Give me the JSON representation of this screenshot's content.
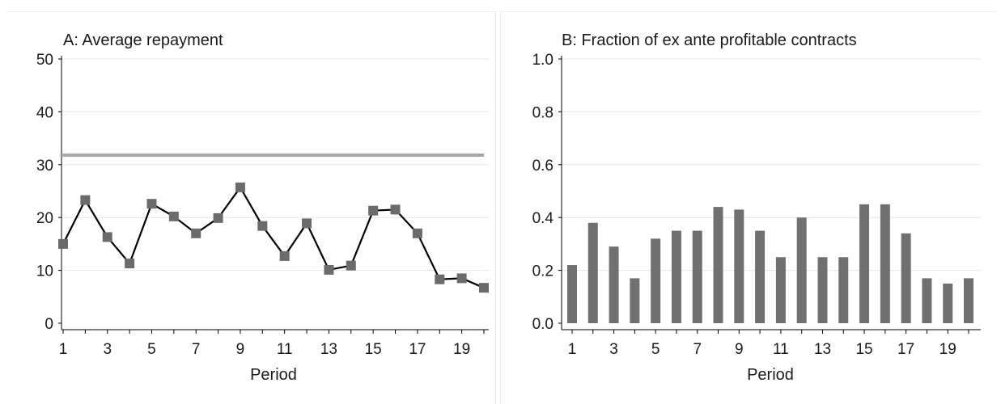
{
  "chart_data": [
    {
      "type": "line",
      "title": "A: Average repayment",
      "xlabel": "Period",
      "ylabel": "",
      "xlim": [
        1,
        20
      ],
      "ylim": [
        0,
        50
      ],
      "yticks": [
        "0",
        "10",
        "20",
        "30",
        "40",
        "50"
      ],
      "xticks": [
        "1",
        "3",
        "5",
        "7",
        "9",
        "11",
        "13",
        "15",
        "17",
        "19"
      ],
      "grid": true,
      "x": [
        1,
        2,
        3,
        4,
        5,
        6,
        7,
        8,
        9,
        10,
        11,
        12,
        13,
        14,
        15,
        16,
        17,
        18,
        19,
        20
      ],
      "series": [
        {
          "values": [
            15,
            23.3,
            16.3,
            11.3,
            22.6,
            20.2,
            17,
            19.9,
            25.7,
            18.4,
            12.7,
            18.9,
            10.1,
            10.9,
            21.3,
            21.5,
            17,
            8.3,
            8.5,
            6.7
          ],
          "color": "#000000",
          "marker_color": "#6b6b6b"
        },
        {
          "values": [
            31.8,
            31.8
          ],
          "x": [
            1,
            20
          ],
          "color": "#a9a9a9",
          "reference_line": true
        }
      ]
    },
    {
      "type": "bar",
      "title": "B: Fraction of ex ante profitable contracts",
      "xlabel": "Period",
      "ylabel": "",
      "xlim": [
        1,
        20
      ],
      "ylim": [
        0,
        1.0
      ],
      "yticks": [
        "0.0",
        "0.2",
        "0.4",
        "0.6",
        "0.8",
        "1.0"
      ],
      "xticks": [
        "1",
        "3",
        "5",
        "7",
        "9",
        "11",
        "13",
        "15",
        "17",
        "19"
      ],
      "grid": true,
      "categories": [
        1,
        2,
        3,
        4,
        5,
        6,
        7,
        8,
        9,
        10,
        11,
        12,
        13,
        14,
        15,
        16,
        17,
        18,
        19,
        20
      ],
      "values": [
        0.22,
        0.38,
        0.29,
        0.17,
        0.32,
        0.35,
        0.35,
        0.44,
        0.43,
        0.35,
        0.25,
        0.4,
        0.25,
        0.25,
        0.45,
        0.45,
        0.34,
        0.17,
        0.15,
        0.17
      ],
      "color": "#707070"
    }
  ]
}
